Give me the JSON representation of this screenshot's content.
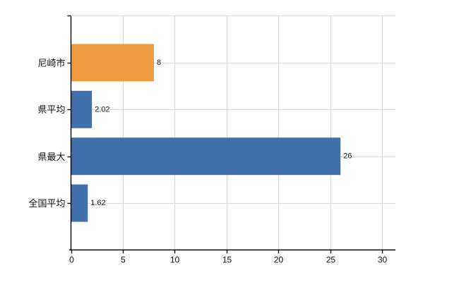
{
  "chart_data": {
    "type": "bar",
    "orientation": "horizontal",
    "title": "",
    "xlabel": "",
    "ylabel": "",
    "categories": [
      "尼崎市",
      "県平均",
      "県最大",
      "全国平均"
    ],
    "values": [
      8,
      2.02,
      26,
      1.62
    ],
    "value_labels": [
      "8",
      "2.02",
      "26",
      "1.62"
    ],
    "bar_colors": [
      "#ee9b3f",
      "#4071ac",
      "#4071ac",
      "#4071ac"
    ],
    "x_ticks": [
      0,
      5,
      10,
      15,
      20,
      25,
      30
    ],
    "x_tick_labels": [
      "0",
      "5",
      "10",
      "15",
      "20",
      "25",
      "30"
    ],
    "xlim": [
      0,
      31.3
    ],
    "grid": true,
    "legend": "none",
    "colors": {
      "orange_bar": "#ee9b3f",
      "blue_bar": "#4071ac",
      "axis": "#000000",
      "gridline": "#d9d9d9",
      "background": "#ffffff",
      "text": "#111111"
    }
  }
}
